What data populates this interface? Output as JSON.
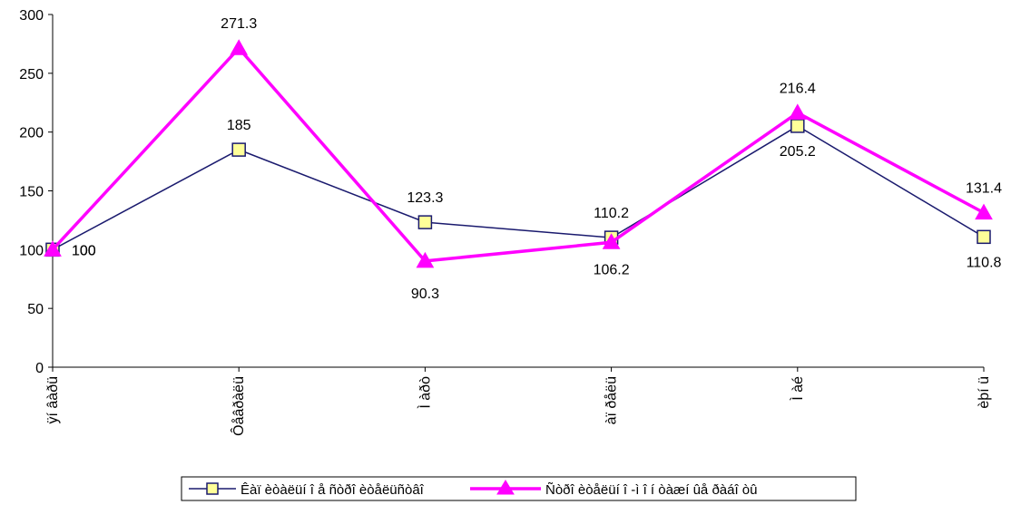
{
  "chart_data": {
    "type": "line",
    "categories": [
      "ÿí âàðü",
      "Ôåâðàëü",
      "Ì àðò",
      "àï ðåëü",
      "Ì àé",
      "èþí ü"
    ],
    "ylim": [
      0,
      300
    ],
    "yticks": [
      0,
      50,
      100,
      150,
      200,
      250,
      300
    ],
    "grid": false,
    "legend": "bottom",
    "series": [
      {
        "name": "Êàï èòàëüí î å ñòðî èòåëüñòâî",
        "values": [
          100,
          185,
          123.3,
          110.2,
          205.2,
          110.8
        ],
        "labels": [
          "100",
          "185",
          "123.3",
          "110.2",
          "205.2",
          "110.8"
        ],
        "color": "#1a1a6e",
        "marker": "square",
        "marker_fill": "#ffff99"
      },
      {
        "name": "Ñòðî èòåëüí î -ì î í òàæí ûå ðàáî òû",
        "values": [
          100,
          271.3,
          90.3,
          106.2,
          216.4,
          131.4
        ],
        "labels": [
          "100",
          "271.3",
          "90.3",
          "106.2",
          "216.4",
          "131.4"
        ],
        "color": "#ff00ff",
        "marker": "triangle",
        "marker_fill": "#ff00ff"
      }
    ]
  }
}
